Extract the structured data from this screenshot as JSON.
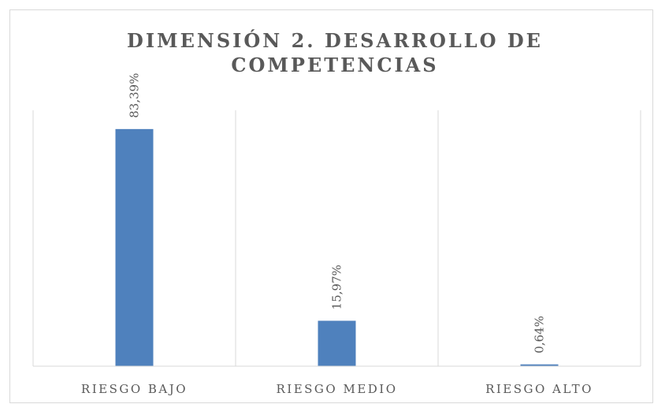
{
  "chart_data": {
    "type": "bar",
    "title": "DIMENSIÓN 2. DESARROLLO DE COMPETENCIAS",
    "categories": [
      "RIESGO BAJO",
      "RIESGO MEDIO",
      "RIESGO ALTO"
    ],
    "values": [
      83.39,
      15.97,
      0.64
    ],
    "value_labels": [
      "83,39%",
      "15,97%",
      "0,64%"
    ],
    "color": "#4f81bd",
    "ylim": [
      0,
      90
    ]
  }
}
